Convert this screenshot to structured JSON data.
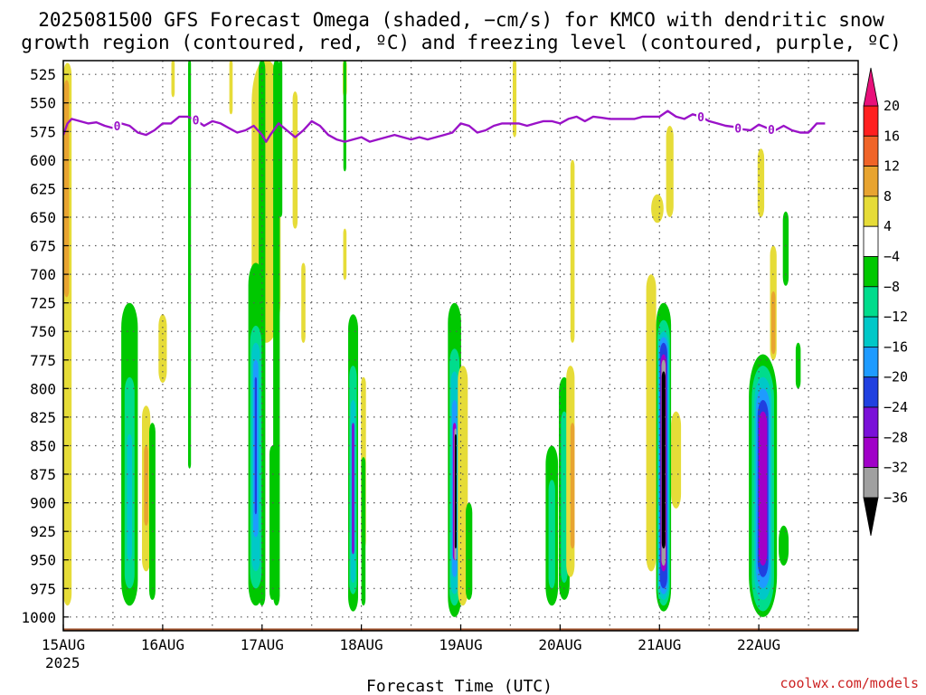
{
  "title_line1": "2025081500 GFS Forecast Omega (shaded, −cm/s) for KMCO with dendritic snow",
  "title_line2": "growth region (contoured, red, ºC) and freezing level (contoured, purple, ºC)",
  "credit": "coolwx.com/models",
  "colors": {
    "credit": "#cc2222",
    "freezing_level": "#9a12c8",
    "ground": "#a0522d"
  },
  "chart_data": {
    "type": "heatmap",
    "xlabel": "Forecast Time (UTC)",
    "ylabel": "",
    "ylim_hpa": [
      1012,
      513
    ],
    "xlim_hours": [
      0,
      192
    ],
    "x_ticks": [
      {
        "label": "15AUG",
        "hour": 0
      },
      {
        "label": "16AUG",
        "hour": 24
      },
      {
        "label": "17AUG",
        "hour": 48
      },
      {
        "label": "18AUG",
        "hour": 72
      },
      {
        "label": "19AUG",
        "hour": 96
      },
      {
        "label": "20AUG",
        "hour": 120
      },
      {
        "label": "21AUG",
        "hour": 144
      },
      {
        "label": "22AUG",
        "hour": 168
      }
    ],
    "x_sublabel": "2025",
    "y_ticks": [
      525,
      550,
      575,
      600,
      625,
      650,
      675,
      700,
      725,
      750,
      775,
      800,
      825,
      850,
      875,
      900,
      925,
      950,
      975,
      1000
    ],
    "colorbar": {
      "labels": [
        "20",
        "16",
        "12",
        "8",
        "4",
        "−4",
        "−8",
        "−12",
        "−16",
        "−20",
        "−24",
        "−28",
        "−32",
        "−36"
      ],
      "colors": [
        "#ff1f1f",
        "#f06428",
        "#e8a430",
        "#e6dc38",
        "#ffffff",
        "#00c800",
        "#00dc8c",
        "#00c8c8",
        "#1e9bff",
        "#2040e0",
        "#7a10d8",
        "#a000c8",
        "#a0a0a0"
      ],
      "top_arrow_color": "#e8107a",
      "bottom_arrow_color": "#000000"
    },
    "freezing_level": {
      "label": "0",
      "label_hours": [
        13,
        32,
        154,
        163,
        171
      ],
      "points": [
        [
          0,
          578
        ],
        [
          1,
          568
        ],
        [
          2,
          564
        ],
        [
          4,
          566
        ],
        [
          6,
          568
        ],
        [
          8,
          567
        ],
        [
          10,
          570
        ],
        [
          12,
          572
        ],
        [
          14,
          568
        ],
        [
          16,
          570
        ],
        [
          18,
          576
        ],
        [
          20,
          578
        ],
        [
          22,
          574
        ],
        [
          24,
          568
        ],
        [
          26,
          568
        ],
        [
          28,
          562
        ],
        [
          30,
          562
        ],
        [
          32,
          565
        ],
        [
          34,
          570
        ],
        [
          36,
          566
        ],
        [
          38,
          568
        ],
        [
          40,
          572
        ],
        [
          42,
          576
        ],
        [
          44,
          574
        ],
        [
          46,
          570
        ],
        [
          48,
          578
        ],
        [
          49,
          584
        ],
        [
          50,
          578
        ],
        [
          52,
          568
        ],
        [
          54,
          574
        ],
        [
          56,
          580
        ],
        [
          58,
          574
        ],
        [
          60,
          566
        ],
        [
          62,
          570
        ],
        [
          64,
          578
        ],
        [
          66,
          582
        ],
        [
          68,
          584
        ],
        [
          70,
          582
        ],
        [
          72,
          580
        ],
        [
          74,
          584
        ],
        [
          76,
          582
        ],
        [
          78,
          580
        ],
        [
          80,
          578
        ],
        [
          82,
          580
        ],
        [
          84,
          582
        ],
        [
          86,
          580
        ],
        [
          88,
          582
        ],
        [
          90,
          580
        ],
        [
          92,
          578
        ],
        [
          94,
          576
        ],
        [
          96,
          568
        ],
        [
          98,
          570
        ],
        [
          100,
          576
        ],
        [
          102,
          574
        ],
        [
          104,
          570
        ],
        [
          106,
          568
        ],
        [
          108,
          568
        ],
        [
          110,
          568
        ],
        [
          112,
          570
        ],
        [
          114,
          568
        ],
        [
          116,
          566
        ],
        [
          118,
          566
        ],
        [
          120,
          568
        ],
        [
          122,
          564
        ],
        [
          124,
          562
        ],
        [
          126,
          566
        ],
        [
          128,
          562
        ],
        [
          130,
          563
        ],
        [
          132,
          564
        ],
        [
          134,
          564
        ],
        [
          136,
          564
        ],
        [
          138,
          564
        ],
        [
          140,
          562
        ],
        [
          142,
          562
        ],
        [
          144,
          562
        ],
        [
          146,
          557
        ],
        [
          148,
          562
        ],
        [
          150,
          564
        ],
        [
          152,
          560
        ],
        [
          154,
          562
        ],
        [
          156,
          566
        ],
        [
          158,
          568
        ],
        [
          160,
          570
        ],
        [
          162,
          571
        ],
        [
          164,
          573
        ],
        [
          166,
          574
        ],
        [
          168,
          569
        ],
        [
          170,
          572
        ],
        [
          172,
          574
        ],
        [
          174,
          570
        ],
        [
          176,
          574
        ],
        [
          178,
          576
        ],
        [
          180,
          576
        ],
        [
          182,
          568
        ],
        [
          184,
          568
        ]
      ]
    },
    "shaded_regions": [
      {
        "color": "#e6dc38",
        "x": 1.0,
        "w": 2.0,
        "p_top": 515,
        "p_bot": 990
      },
      {
        "color": "#e8a430",
        "x": 0.8,
        "w": 1.2,
        "p_top": 530,
        "p_bot": 720
      },
      {
        "color": "#e6dc38",
        "x": 26.5,
        "w": 0.8,
        "p_top": 512,
        "p_bot": 545
      },
      {
        "color": "#e6dc38",
        "x": 24.0,
        "w": 2.0,
        "p_top": 735,
        "p_bot": 795
      },
      {
        "color": "#00c800",
        "x": 30.5,
        "w": 0.7,
        "p_top": 512,
        "p_bot": 870
      },
      {
        "color": "#e6dc38",
        "x": 40.5,
        "w": 0.8,
        "p_top": 512,
        "p_bot": 560
      },
      {
        "color": "#e6dc38",
        "x": 49.0,
        "w": 7.0,
        "p_top": 512,
        "p_bot": 760
      },
      {
        "color": "#00c800",
        "x": 48.0,
        "w": 1.6,
        "p_top": 512,
        "p_bot": 990
      },
      {
        "color": "#00c800",
        "x": 51.5,
        "w": 1.6,
        "p_top": 512,
        "p_bot": 990
      },
      {
        "color": "#00c800",
        "x": 52.5,
        "w": 0.8,
        "p_top": 512,
        "p_bot": 650
      },
      {
        "color": "#e6dc38",
        "x": 56.0,
        "w": 1.2,
        "p_top": 540,
        "p_bot": 660
      },
      {
        "color": "#e6dc38",
        "x": 58.0,
        "w": 1.0,
        "p_top": 690,
        "p_bot": 760
      },
      {
        "color": "#e6dc38",
        "x": 68.0,
        "w": 1.0,
        "p_top": 512,
        "p_bot": 545
      },
      {
        "color": "#00c800",
        "x": 68.0,
        "w": 0.7,
        "p_top": 512,
        "p_bot": 610
      },
      {
        "color": "#e6dc38",
        "x": 68.0,
        "w": 0.8,
        "p_top": 660,
        "p_bot": 705
      },
      {
        "color": "#e6dc38",
        "x": 109.0,
        "w": 0.9,
        "p_top": 512,
        "p_bot": 580
      },
      {
        "color": "#00c800",
        "x": 16.0,
        "w": 4.0,
        "p_top": 725,
        "p_bot": 990
      },
      {
        "color": "#00dc8c",
        "x": 16.0,
        "w": 2.4,
        "p_top": 790,
        "p_bot": 975
      },
      {
        "color": "#00c8c8",
        "x": 16.0,
        "w": 1.2,
        "p_top": 840,
        "p_bot": 950
      },
      {
        "color": "#e6dc38",
        "x": 20.0,
        "w": 2.0,
        "p_top": 815,
        "p_bot": 960
      },
      {
        "color": "#e8a430",
        "x": 20.0,
        "w": 1.0,
        "p_top": 850,
        "p_bot": 920
      },
      {
        "color": "#00c800",
        "x": 21.5,
        "w": 1.5,
        "p_top": 830,
        "p_bot": 985
      },
      {
        "color": "#00c800",
        "x": 46.5,
        "w": 3.6,
        "p_top": 690,
        "p_bot": 990
      },
      {
        "color": "#00dc8c",
        "x": 46.5,
        "w": 2.8,
        "p_top": 745,
        "p_bot": 975
      },
      {
        "color": "#00c8c8",
        "x": 46.5,
        "w": 2.0,
        "p_top": 760,
        "p_bot": 960
      },
      {
        "color": "#1e9bff",
        "x": 46.5,
        "w": 1.2,
        "p_top": 775,
        "p_bot": 930
      },
      {
        "color": "#2040e0",
        "x": 46.5,
        "w": 0.5,
        "p_top": 790,
        "p_bot": 910
      },
      {
        "color": "#00c800",
        "x": 50.5,
        "w": 1.4,
        "p_top": 850,
        "p_bot": 985
      },
      {
        "color": "#00c800",
        "x": 70.0,
        "w": 2.4,
        "p_top": 735,
        "p_bot": 995
      },
      {
        "color": "#00dc8c",
        "x": 70.0,
        "w": 1.8,
        "p_top": 780,
        "p_bot": 980
      },
      {
        "color": "#00c8c8",
        "x": 70.0,
        "w": 1.2,
        "p_top": 810,
        "p_bot": 970
      },
      {
        "color": "#7a10d8",
        "x": 70.0,
        "w": 0.6,
        "p_top": 830,
        "p_bot": 945
      },
      {
        "color": "#e6dc38",
        "x": 72.5,
        "w": 1.2,
        "p_top": 790,
        "p_bot": 940
      },
      {
        "color": "#00c800",
        "x": 72.5,
        "w": 1.0,
        "p_top": 860,
        "p_bot": 990
      },
      {
        "color": "#00c800",
        "x": 94.5,
        "w": 3.2,
        "p_top": 725,
        "p_bot": 1000
      },
      {
        "color": "#00dc8c",
        "x": 94.5,
        "w": 2.4,
        "p_top": 765,
        "p_bot": 990
      },
      {
        "color": "#00c8c8",
        "x": 94.5,
        "w": 1.8,
        "p_top": 785,
        "p_bot": 980
      },
      {
        "color": "#1e9bff",
        "x": 94.5,
        "w": 1.2,
        "p_top": 810,
        "p_bot": 965
      },
      {
        "color": "#a000c8",
        "x": 94.5,
        "w": 0.8,
        "p_top": 830,
        "p_bot": 950
      },
      {
        "color": "#a0a0a0",
        "x": 94.7,
        "w": 0.5,
        "p_top": 835,
        "p_bot": 950
      },
      {
        "color": "#000000",
        "x": 94.7,
        "w": 0.3,
        "p_top": 840,
        "p_bot": 940
      },
      {
        "color": "#e6dc38",
        "x": 96.5,
        "w": 2.4,
        "p_top": 780,
        "p_bot": 990
      },
      {
        "color": "#00c800",
        "x": 98.0,
        "w": 1.6,
        "p_top": 900,
        "p_bot": 985
      },
      {
        "color": "#00c800",
        "x": 118.0,
        "w": 3.0,
        "p_top": 850,
        "p_bot": 990
      },
      {
        "color": "#00dc8c",
        "x": 118.0,
        "w": 1.6,
        "p_top": 880,
        "p_bot": 975
      },
      {
        "color": "#00c800",
        "x": 121.0,
        "w": 2.6,
        "p_top": 790,
        "p_bot": 985
      },
      {
        "color": "#00dc8c",
        "x": 121.0,
        "w": 1.6,
        "p_top": 820,
        "p_bot": 970
      },
      {
        "color": "#e6dc38",
        "x": 122.5,
        "w": 2.0,
        "p_top": 780,
        "p_bot": 965
      },
      {
        "color": "#e8a430",
        "x": 123.0,
        "w": 1.0,
        "p_top": 830,
        "p_bot": 940
      },
      {
        "color": "#e6dc38",
        "x": 123.0,
        "w": 1.0,
        "p_top": 600,
        "p_bot": 760
      },
      {
        "color": "#e6dc38",
        "x": 142.0,
        "w": 2.4,
        "p_top": 700,
        "p_bot": 960
      },
      {
        "color": "#e6dc38",
        "x": 148.0,
        "w": 2.4,
        "p_top": 820,
        "p_bot": 905
      },
      {
        "color": "#e6dc38",
        "x": 143.5,
        "w": 3.0,
        "p_top": 630,
        "p_bot": 655
      },
      {
        "color": "#e6dc38",
        "x": 146.5,
        "w": 1.8,
        "p_top": 570,
        "p_bot": 650
      },
      {
        "color": "#00c800",
        "x": 145.0,
        "w": 3.6,
        "p_top": 725,
        "p_bot": 995
      },
      {
        "color": "#00dc8c",
        "x": 145.0,
        "w": 3.0,
        "p_top": 740,
        "p_bot": 990
      },
      {
        "color": "#00c8c8",
        "x": 145.0,
        "w": 2.6,
        "p_top": 750,
        "p_bot": 985
      },
      {
        "color": "#1e9bff",
        "x": 145.0,
        "w": 2.2,
        "p_top": 755,
        "p_bot": 980
      },
      {
        "color": "#2040e0",
        "x": 145.0,
        "w": 1.8,
        "p_top": 760,
        "p_bot": 975
      },
      {
        "color": "#a000c8",
        "x": 145.0,
        "w": 1.4,
        "p_top": 770,
        "p_bot": 960
      },
      {
        "color": "#a0a0a0",
        "x": 145.0,
        "w": 1.0,
        "p_top": 775,
        "p_bot": 955
      },
      {
        "color": "#000000",
        "x": 145.0,
        "w": 0.9,
        "p_top": 785,
        "p_bot": 940
      },
      {
        "color": "#e6dc38",
        "x": 168.5,
        "w": 1.6,
        "p_top": 590,
        "p_bot": 650
      },
      {
        "color": "#e6dc38",
        "x": 171.5,
        "w": 1.6,
        "p_top": 675,
        "p_bot": 775
      },
      {
        "color": "#e8a430",
        "x": 171.5,
        "w": 1.0,
        "p_top": 715,
        "p_bot": 770
      },
      {
        "color": "#00c800",
        "x": 174.5,
        "w": 1.4,
        "p_top": 645,
        "p_bot": 710
      },
      {
        "color": "#00c800",
        "x": 177.5,
        "w": 1.2,
        "p_top": 760,
        "p_bot": 800
      },
      {
        "color": "#00c800",
        "x": 169.0,
        "w": 6.8,
        "p_top": 770,
        "p_bot": 1000
      },
      {
        "color": "#00dc8c",
        "x": 169.0,
        "w": 5.4,
        "p_top": 780,
        "p_bot": 995
      },
      {
        "color": "#00c8c8",
        "x": 169.0,
        "w": 4.2,
        "p_top": 790,
        "p_bot": 985
      },
      {
        "color": "#1e9bff",
        "x": 169.0,
        "w": 3.4,
        "p_top": 800,
        "p_bot": 975
      },
      {
        "color": "#2040e0",
        "x": 169.0,
        "w": 2.6,
        "p_top": 810,
        "p_bot": 965
      },
      {
        "color": "#a000c8",
        "x": 169.0,
        "w": 2.0,
        "p_top": 820,
        "p_bot": 955
      },
      {
        "color": "#00c800",
        "x": 174.0,
        "w": 2.4,
        "p_top": 920,
        "p_bot": 955
      }
    ]
  }
}
